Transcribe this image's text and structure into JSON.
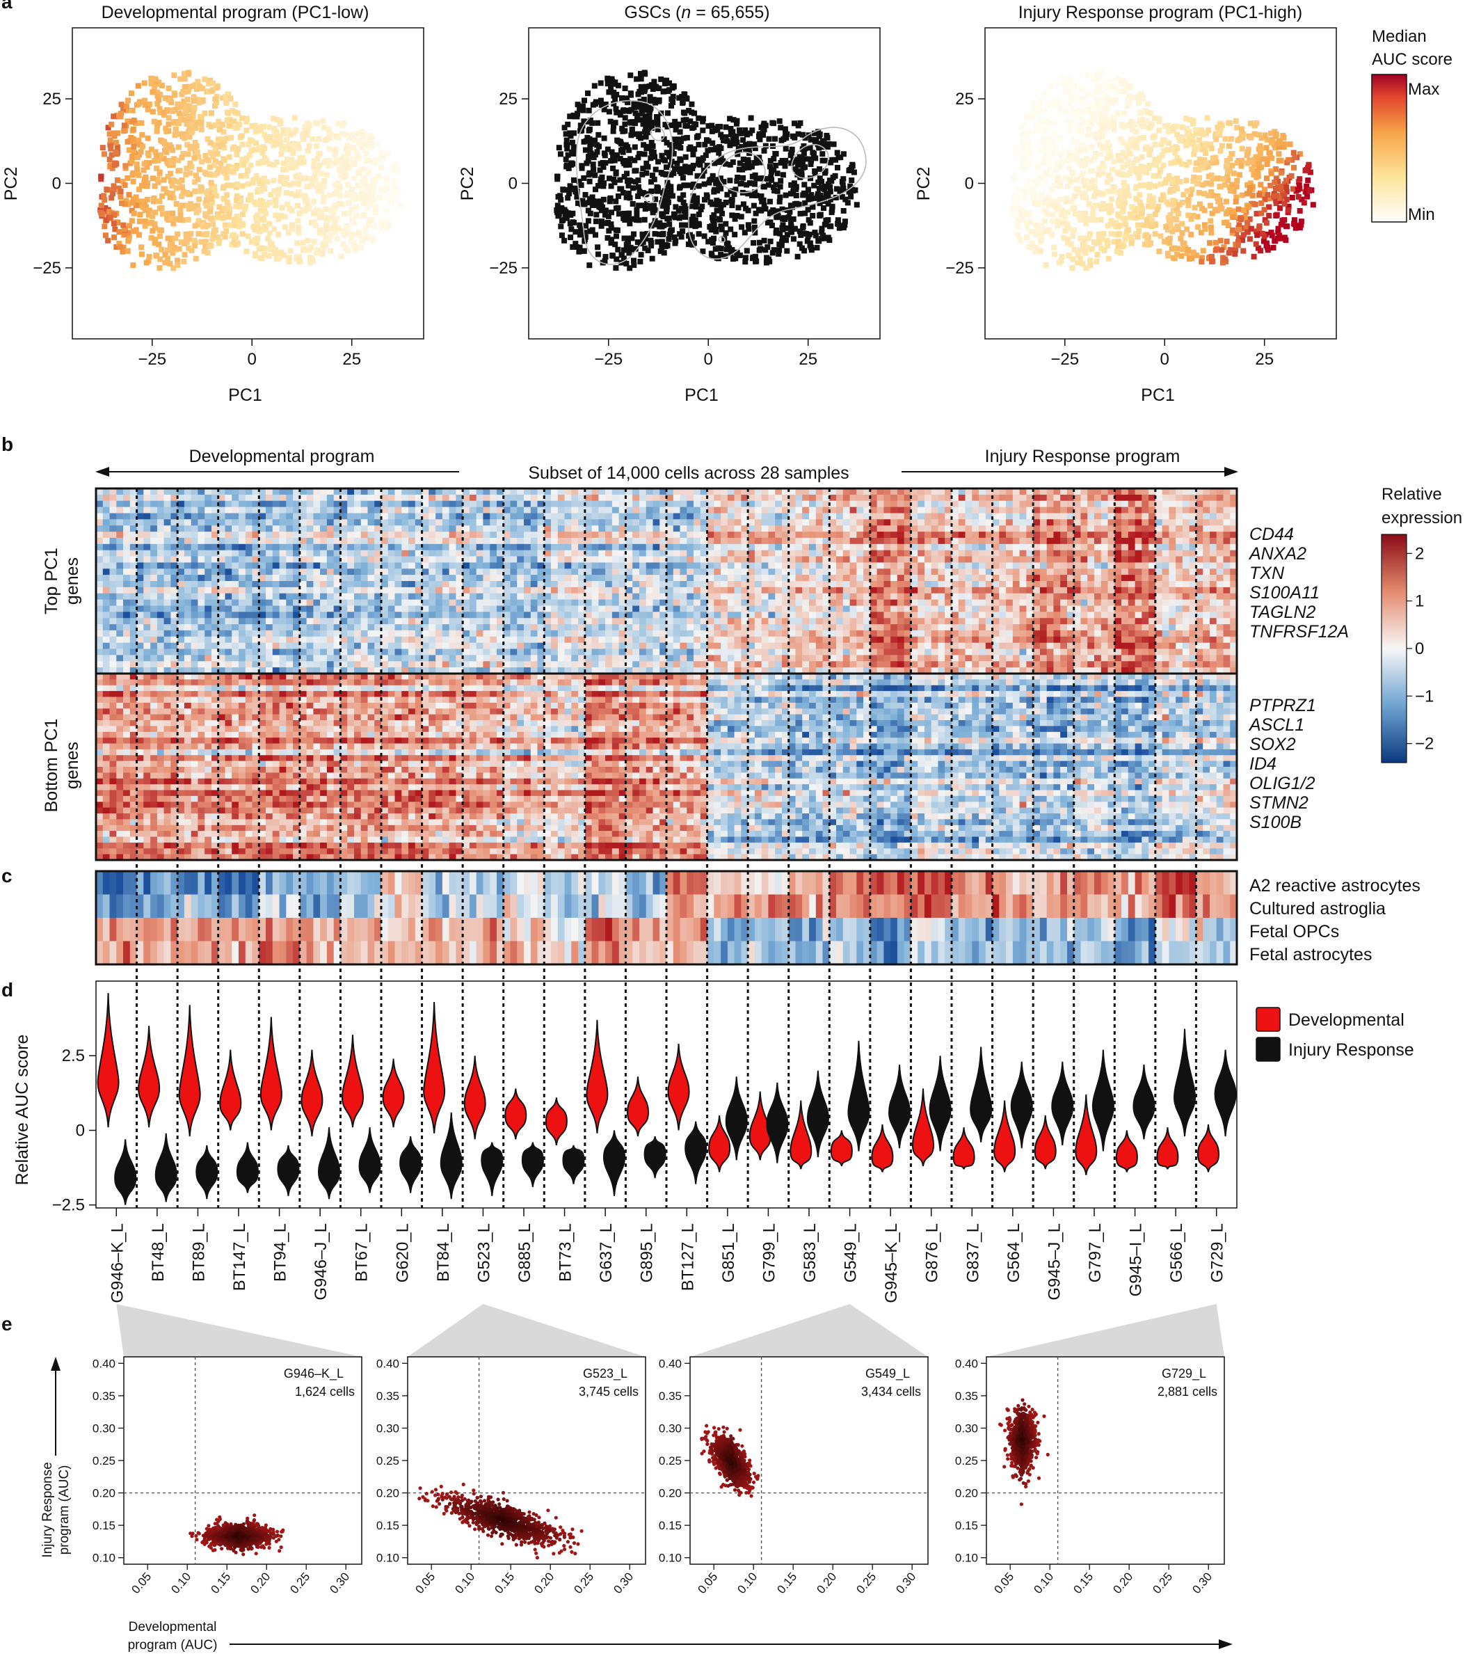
{
  "panel_letters": [
    "a",
    "b",
    "c",
    "d",
    "e"
  ],
  "colors": {
    "auc_low": "#fff8e0",
    "auc_mid": "#f7a64a",
    "auc_high": "#b2001e",
    "expr_neg": "#1c4f9c",
    "expr_zero": "#f4f4f4",
    "expr_pos": "#b0191e",
    "developmental": "#ee1111",
    "injury": "#111111",
    "scatter": "#6b0c0c"
  },
  "panel_a": {
    "titles": [
      "Developmental program (PC1-low)",
      "GSCs (n = 65,655)",
      "Injury Response program (PC1-high)"
    ],
    "title_gsc_parts": [
      "GSCs (",
      "n",
      " = 65,655)"
    ],
    "xlabel": "PC1",
    "ylabel": "PC2",
    "xticks": [
      "−25",
      "0",
      "25"
    ],
    "yticks": [
      "25",
      "0",
      "−25"
    ],
    "colorbar": {
      "title_line1": "Median",
      "title_line2": "AUC score",
      "max": "Max",
      "min": "Min"
    }
  },
  "panel_b": {
    "left_arrow_label": "Developmental program",
    "right_arrow_label": "Injury Response program",
    "subtitle": "Subset of 14,000 cells across 28 samples",
    "row_labels": {
      "top_line1": "Top PC1",
      "top_line2": "genes",
      "bottom_line1": "Bottom PC1",
      "bottom_line2": "genes"
    },
    "top_genes": [
      "CD44",
      "ANXA2",
      "TXN",
      "S100A11",
      "TAGLN2",
      "TNFRSF12A"
    ],
    "bottom_genes": [
      "PTPRZ1",
      "ASCL1",
      "SOX2",
      "ID4",
      "OLIG1/2",
      "STMN2",
      "S100B"
    ],
    "colorbar": {
      "title_line1": "Relative",
      "title_line2": "expression",
      "ticks": [
        "2",
        "1",
        "0",
        "−1",
        "−2"
      ]
    }
  },
  "panel_c": {
    "rows": [
      "A2 reactive astrocytes",
      "Cultured astroglia",
      "Fetal OPCs",
      "Fetal astrocytes"
    ]
  },
  "panel_d": {
    "ylabel": "Relative AUC score",
    "yticks": [
      "2.5",
      "0",
      "−2.5"
    ],
    "legend": [
      "Developmental",
      "Injury Response"
    ]
  },
  "panel_e": {
    "ylabel_line1": "Injury Response",
    "ylabel_line2": "program (AUC)",
    "xlabel_line1": "Developmental",
    "xlabel_line2": "program (AUC)",
    "xticks": [
      "0.05",
      "0.10",
      "0.15",
      "0.20",
      "0.25",
      "0.30"
    ],
    "yticks": [
      "0.40",
      "0.35",
      "0.30",
      "0.25",
      "0.20",
      "0.15",
      "0.10"
    ],
    "annotations": [
      {
        "sample": "G946–K_L",
        "cells": "1,624 cells"
      },
      {
        "sample": "G523_L",
        "cells": "3,745 cells"
      },
      {
        "sample": "G549_L",
        "cells": "3,434 cells"
      },
      {
        "sample": "G729_L",
        "cells": "2,881 cells"
      }
    ]
  },
  "chart_data": [
    {
      "type": "scatter",
      "panel": "a",
      "description_series": [
        "Developmental program (PC1-low)",
        "GSCs (n = 65,655)",
        "Injury Response program (PC1-high)"
      ],
      "xlabel": "PC1",
      "ylabel": "PC2",
      "xlim": [
        -45,
        43
      ],
      "ylim": [
        -46,
        46
      ],
      "color_scale": "Median AUC score (Min to Max)"
    },
    {
      "type": "heatmap",
      "panel": "b",
      "title": "Subset of 14,000 cells across 28 samples",
      "columns": [
        "G946–K_L",
        "BT48_L",
        "BT89_L",
        "BT147_L",
        "BT94_L",
        "G946–J_L",
        "BT67_L",
        "G620_L",
        "BT84_L",
        "G523_L",
        "G885_L",
        "BT73_L",
        "G637_L",
        "G895_L",
        "BT127_L",
        "G851_L",
        "G799_L",
        "G583_L",
        "G549_L",
        "G945–K_L",
        "G876_L",
        "G837_L",
        "G564_L",
        "G945–J_L",
        "G797_L",
        "G945–I_L",
        "G566_L",
        "G729_L"
      ],
      "top_sign": [
        -0.5,
        -0.6,
        -0.7,
        -0.6,
        -0.6,
        -0.5,
        -0.5,
        -0.4,
        -0.4,
        -0.4,
        -0.7,
        -0.2,
        -0.3,
        -0.4,
        -0.4,
        0.3,
        0.2,
        0.3,
        0.5,
        1.2,
        0.5,
        0.4,
        0.5,
        1.0,
        0.6,
        1.3,
        0.4,
        0.6
      ],
      "bottom_sign": [
        1.0,
        1.0,
        0.8,
        0.9,
        1.0,
        0.9,
        1.0,
        0.9,
        0.8,
        0.8,
        0.4,
        0.3,
        1.2,
        0.9,
        0.8,
        -0.3,
        -0.4,
        -0.6,
        -0.5,
        -0.9,
        -0.4,
        -0.5,
        -0.5,
        -0.7,
        -0.4,
        -0.8,
        -0.3,
        -0.3
      ],
      "scale": {
        "min": -2,
        "max": 2
      }
    },
    {
      "type": "heatmap",
      "panel": "c",
      "rows": [
        "A2 reactive astrocytes",
        "Cultured astroglia",
        "Fetal OPCs",
        "Fetal astrocytes"
      ],
      "values": [
        [
          -1.3,
          -0.9,
          -1.0,
          -1.4,
          -0.8,
          -0.8,
          -0.6,
          0.3,
          -0.4,
          -0.6,
          -0.2,
          -0.3,
          -0.4,
          -0.9,
          1.0,
          0.3,
          0.3,
          0.3,
          0.9,
          1.1,
          1.3,
          0.9,
          0.7,
          0.6,
          0.9,
          0.6,
          1.4,
          0.6
        ],
        [
          -1.1,
          -0.8,
          -0.6,
          -0.9,
          -0.3,
          -0.6,
          -0.4,
          0.1,
          -0.3,
          -0.4,
          0.1,
          -0.5,
          -0.3,
          -0.4,
          0.6,
          0.7,
          0.7,
          0.6,
          0.8,
          0.8,
          1.1,
          0.7,
          0.9,
          0.6,
          0.7,
          0.5,
          1.0,
          0.8
        ],
        [
          0.8,
          0.7,
          0.6,
          0.6,
          0.8,
          0.6,
          0.6,
          0.4,
          0.6,
          0.5,
          0.2,
          0.1,
          1.2,
          0.6,
          0.6,
          -0.6,
          -0.4,
          -0.7,
          -0.5,
          -1.0,
          -0.2,
          -0.7,
          -0.5,
          -0.6,
          -0.4,
          -1.0,
          -0.1,
          -0.2
        ],
        [
          0.7,
          0.5,
          0.6,
          0.5,
          0.7,
          0.5,
          0.6,
          0.4,
          0.5,
          0.4,
          0.2,
          0.2,
          0.9,
          0.5,
          0.5,
          -0.5,
          -0.4,
          -0.6,
          -0.5,
          -1.1,
          -0.3,
          -0.7,
          -0.6,
          -0.6,
          -0.4,
          -1.0,
          -0.2,
          -0.3
        ]
      ]
    },
    {
      "type": "violin",
      "panel": "d",
      "ylabel": "Relative AUC score",
      "ylim": [
        -2.6,
        5.0
      ],
      "categories": [
        "G946–K_L",
        "BT48_L",
        "BT89_L",
        "BT147_L",
        "BT94_L",
        "G946–J_L",
        "BT67_L",
        "G620_L",
        "BT84_L",
        "G523_L",
        "G885_L",
        "BT73_L",
        "G637_L",
        "G895_L",
        "BT127_L",
        "G851_L",
        "G799_L",
        "G583_L",
        "G549_L",
        "G945–K_L",
        "G876_L",
        "G837_L",
        "G564_L",
        "G945–J_L",
        "G797_L",
        "G945–I_L",
        "G566_L",
        "G729_L"
      ],
      "series": [
        {
          "name": "Developmental",
          "medians": [
            1.6,
            1.4,
            1.2,
            0.9,
            1.2,
            1.0,
            1.1,
            1.1,
            1.3,
            0.9,
            0.5,
            0.3,
            1.2,
            0.6,
            1.3,
            -0.6,
            -0.2,
            -0.7,
            -0.7,
            -0.9,
            -0.5,
            -0.9,
            -0.7,
            -0.7,
            -0.7,
            -0.9,
            -0.9,
            -0.8
          ],
          "lows": [
            0.1,
            0.1,
            -0.2,
            0.0,
            0.0,
            -0.2,
            0.1,
            0.1,
            -0.1,
            -0.3,
            -0.3,
            -0.5,
            -0.1,
            -0.2,
            0.0,
            -1.4,
            -1.0,
            -1.3,
            -1.2,
            -1.4,
            -1.2,
            -1.3,
            -1.4,
            -1.3,
            -1.5,
            -1.4,
            -1.3,
            -1.4
          ],
          "highs": [
            4.6,
            3.5,
            4.2,
            2.7,
            3.8,
            2.7,
            3.2,
            2.4,
            4.3,
            2.5,
            1.4,
            1.1,
            3.7,
            1.8,
            2.9,
            0.5,
            1.3,
            1.0,
            0.0,
            0.2,
            1.4,
            0.1,
            1.0,
            0.5,
            1.2,
            0.0,
            0.1,
            0.2
          ]
        },
        {
          "name": "Injury Response",
          "medians": [
            -1.6,
            -1.5,
            -1.4,
            -1.4,
            -1.3,
            -1.4,
            -1.2,
            -1.1,
            -1.1,
            -1.0,
            -1.0,
            -1.0,
            -0.9,
            -0.8,
            -0.6,
            0.3,
            0.2,
            0.4,
            0.6,
            0.6,
            0.7,
            0.7,
            0.8,
            0.8,
            0.8,
            0.8,
            1.1,
            1.2
          ],
          "lows": [
            -2.5,
            -2.4,
            -2.3,
            -2.1,
            -2.2,
            -2.3,
            -2.1,
            -2.1,
            -2.3,
            -2.2,
            -1.9,
            -1.8,
            -2.2,
            -1.6,
            -1.8,
            -1.0,
            -1.1,
            -0.9,
            -0.7,
            -0.6,
            -0.7,
            -0.4,
            -0.6,
            -0.5,
            -0.7,
            -0.3,
            -0.2,
            -0.2
          ],
          "highs": [
            -0.3,
            -0.1,
            -0.5,
            -0.4,
            -0.5,
            0.1,
            0.1,
            -0.2,
            0.6,
            -0.4,
            -0.4,
            -0.5,
            0.0,
            -0.2,
            0.3,
            1.8,
            1.6,
            2.0,
            3.0,
            2.2,
            2.5,
            2.8,
            2.3,
            2.3,
            2.7,
            2.2,
            3.4,
            2.7
          ]
        }
      ]
    },
    {
      "type": "scatter",
      "panel": "e",
      "xlabel": "Developmental program (AUC)",
      "ylabel": "Injury Response program (AUC)",
      "xlim": [
        0.02,
        0.32
      ],
      "ylim": [
        0.09,
        0.41
      ],
      "reference_lines": {
        "x": 0.11,
        "y": 0.2
      },
      "series": [
        {
          "name": "G946–K_L",
          "center": [
            0.165,
            0.133
          ],
          "spread": [
            0.02,
            0.009
          ],
          "tilt": 0.0
        },
        {
          "name": "G523_L",
          "center": [
            0.14,
            0.158
          ],
          "spread": [
            0.035,
            0.012
          ],
          "tilt": -0.38
        },
        {
          "name": "G549_L",
          "center": [
            0.072,
            0.248
          ],
          "spread": [
            0.012,
            0.015
          ],
          "tilt": -0.9
        },
        {
          "name": "G729_L",
          "center": [
            0.065,
            0.282
          ],
          "spread": [
            0.008,
            0.022
          ],
          "tilt": 0.0
        }
      ]
    }
  ]
}
